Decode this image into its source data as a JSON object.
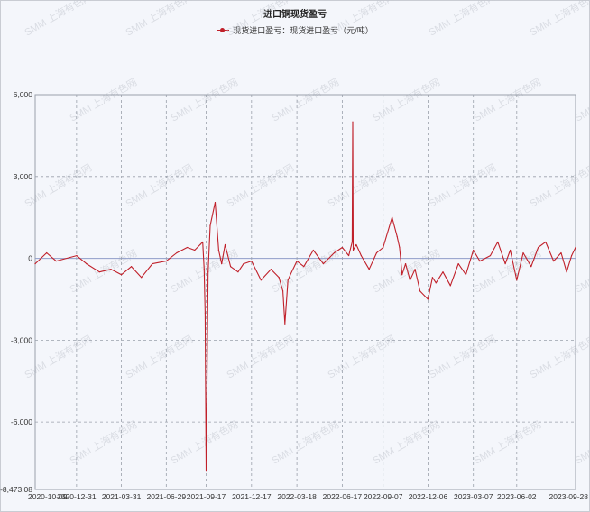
{
  "chart_data": {
    "type": "line",
    "title": "进口铜现货盈亏",
    "series": [
      {
        "name": "现货进口盈亏：现货进口盈亏（元/吨）",
        "color": "#c0202a",
        "x": [
          "2020-10-09",
          "2020-11-01",
          "2020-11-20",
          "2020-12-31",
          "2021-01-20",
          "2021-02-15",
          "2021-03-10",
          "2021-03-31",
          "2021-04-20",
          "2021-05-10",
          "2021-06-01",
          "2021-06-29",
          "2021-07-20",
          "2021-08-10",
          "2021-08-25",
          "2021-09-05",
          "2021-09-10",
          "2021-09-13",
          "2021-09-15",
          "2021-09-17",
          "2021-09-21",
          "2021-09-25",
          "2021-10-05",
          "2021-10-12",
          "2021-10-18",
          "2021-10-25",
          "2021-11-05",
          "2021-11-20",
          "2021-12-01",
          "2021-12-17",
          "2022-01-05",
          "2022-01-25",
          "2022-02-10",
          "2022-02-18",
          "2022-02-22",
          "2022-02-28",
          "2022-03-05",
          "2022-03-18",
          "2022-04-01",
          "2022-04-20",
          "2022-05-10",
          "2022-06-01",
          "2022-06-17",
          "2022-06-30",
          "2022-07-07",
          "2022-07-08",
          "2022-07-09",
          "2022-07-15",
          "2022-07-25",
          "2022-08-10",
          "2022-08-25",
          "2022-09-07",
          "2022-09-25",
          "2022-10-05",
          "2022-10-10",
          "2022-10-15",
          "2022-10-22",
          "2022-10-31",
          "2022-11-10",
          "2022-11-20",
          "2022-12-06",
          "2022-12-15",
          "2022-12-22",
          "2023-01-05",
          "2023-01-20",
          "2023-02-05",
          "2023-02-20",
          "2023-03-07",
          "2023-03-20",
          "2023-04-10",
          "2023-04-25",
          "2023-05-10",
          "2023-05-20",
          "2023-06-02",
          "2023-06-15",
          "2023-07-01",
          "2023-07-15",
          "2023-07-30",
          "2023-08-15",
          "2023-08-30",
          "2023-09-10",
          "2023-09-20",
          "2023-09-28"
        ],
        "values": [
          -200,
          200,
          -100,
          100,
          -200,
          -500,
          -400,
          -600,
          -300,
          -700,
          -200,
          -100,
          200,
          400,
          300,
          500,
          600,
          -400,
          -2000,
          -7800,
          -500,
          1200,
          2050,
          300,
          -200,
          500,
          -300,
          -500,
          -200,
          -100,
          -800,
          -400,
          -700,
          -1200,
          -2400,
          -800,
          -600,
          -100,
          -300,
          300,
          -200,
          200,
          400,
          100,
          600,
          5000,
          300,
          500,
          100,
          -400,
          200,
          400,
          1500,
          800,
          400,
          -600,
          -200,
          -800,
          -400,
          -1200,
          -1500,
          -700,
          -900,
          -500,
          -1000,
          -200,
          -600,
          300,
          -100,
          100,
          600,
          -200,
          300,
          -800,
          200,
          -300,
          400,
          600,
          -100,
          200,
          -500,
          100,
          400
        ]
      }
    ],
    "x_tick_labels": [
      "2020-10-09",
      "2020-12-31",
      "2021-03-31",
      "2021-06-29",
      "2021-09-17",
      "2021-12-17",
      "2022-03-18",
      "2022-06-17",
      "2022-09-07",
      "2022-12-06",
      "2023-03-07",
      "2023-06-02",
      "2023-09-28"
    ],
    "y_tick_labels": [
      "6,000",
      "3,000",
      "0",
      "-3,000",
      "-6,000",
      "-8,473.08"
    ],
    "y_tick_values": [
      6000,
      3000,
      0,
      -3000,
      -6000,
      -8473.08
    ],
    "ylim": [
      -8473.08,
      6000
    ],
    "grid": true,
    "legend_position": "top-center",
    "watermark": "SMM 上海有色网"
  }
}
